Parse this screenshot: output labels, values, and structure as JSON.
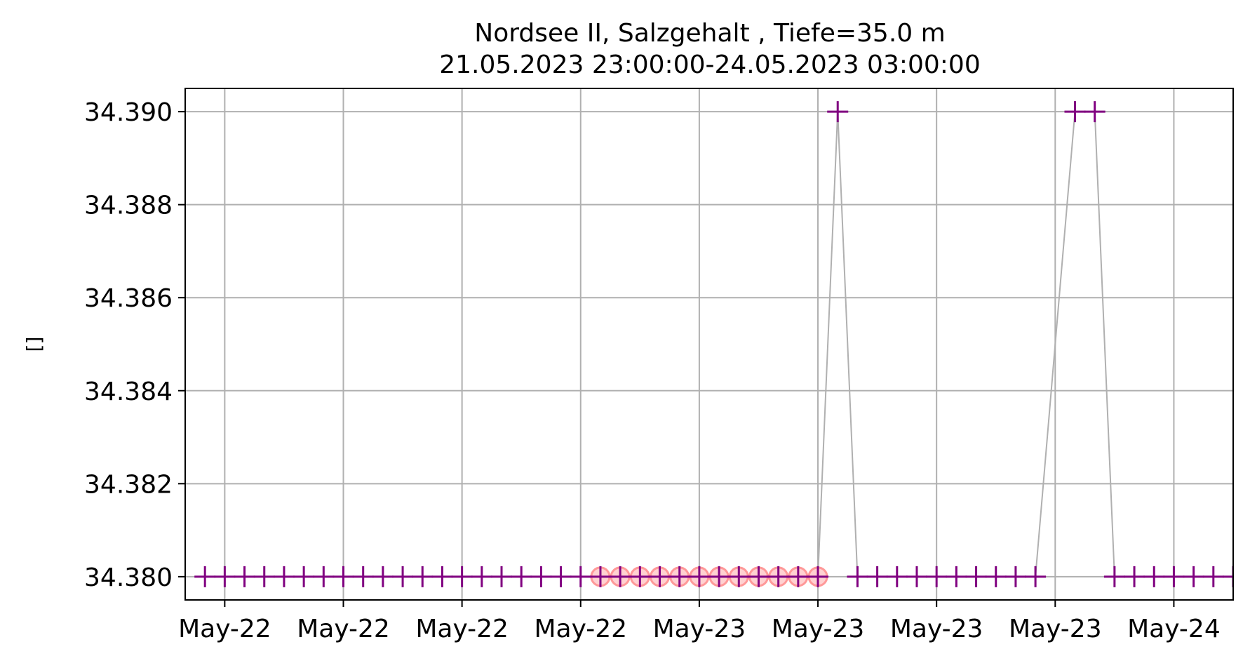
{
  "chart_data": {
    "type": "scatter",
    "title": "Nordsee II, Salzgehalt , Tiefe=35.0 m",
    "subtitle": "21.05.2023 23:00:00-24.05.2023 03:00:00",
    "xlabel": "",
    "ylabel": "[]",
    "x_start": "2023-05-21T23:00",
    "x_end": "2023-05-24T03:00",
    "xlim": [
      "2023-05-21T22:00",
      "2023-05-24T03:00"
    ],
    "ylim": [
      34.3795,
      34.3905
    ],
    "x_ticks": [
      {
        "t": "2023-05-22T00:00",
        "label": "May-22"
      },
      {
        "t": "2023-05-22T06:00",
        "label": "May-22"
      },
      {
        "t": "2023-05-22T12:00",
        "label": "May-22"
      },
      {
        "t": "2023-05-22T18:00",
        "label": "May-22"
      },
      {
        "t": "2023-05-23T00:00",
        "label": "May-23"
      },
      {
        "t": "2023-05-23T06:00",
        "label": "May-23"
      },
      {
        "t": "2023-05-23T12:00",
        "label": "May-23"
      },
      {
        "t": "2023-05-23T18:00",
        "label": "May-23"
      },
      {
        "t": "2023-05-24T00:00",
        "label": "May-24"
      }
    ],
    "y_ticks": [
      {
        "v": 34.38,
        "label": "34.380"
      },
      {
        "v": 34.382,
        "label": "34.382"
      },
      {
        "v": 34.384,
        "label": "34.384"
      },
      {
        "v": 34.386,
        "label": "34.386"
      },
      {
        "v": 34.388,
        "label": "34.388"
      },
      {
        "v": 34.39,
        "label": "34.390"
      }
    ],
    "grid": true,
    "series": [
      {
        "marker": "+",
        "color": "#800080",
        "points": [
          [
            "2023-05-21T23:00",
            34.38
          ],
          [
            "2023-05-22T00:00",
            34.38
          ],
          [
            "2023-05-22T01:00",
            34.38
          ],
          [
            "2023-05-22T02:00",
            34.38
          ],
          [
            "2023-05-22T03:00",
            34.38
          ],
          [
            "2023-05-22T04:00",
            34.38
          ],
          [
            "2023-05-22T05:00",
            34.38
          ],
          [
            "2023-05-22T06:00",
            34.38
          ],
          [
            "2023-05-22T07:00",
            34.38
          ],
          [
            "2023-05-22T08:00",
            34.38
          ],
          [
            "2023-05-22T09:00",
            34.38
          ],
          [
            "2023-05-22T10:00",
            34.38
          ],
          [
            "2023-05-22T11:00",
            34.38
          ],
          [
            "2023-05-22T12:00",
            34.38
          ],
          [
            "2023-05-22T13:00",
            34.38
          ],
          [
            "2023-05-22T14:00",
            34.38
          ],
          [
            "2023-05-22T15:00",
            34.38
          ],
          [
            "2023-05-22T16:00",
            34.38
          ],
          [
            "2023-05-22T17:00",
            34.38
          ],
          [
            "2023-05-22T18:00",
            34.38
          ],
          [
            "2023-05-22T19:00",
            34.38
          ],
          [
            "2023-05-22T20:00",
            34.38
          ],
          [
            "2023-05-22T21:00",
            34.38
          ],
          [
            "2023-05-22T22:00",
            34.38
          ],
          [
            "2023-05-22T23:00",
            34.38
          ],
          [
            "2023-05-23T00:00",
            34.38
          ],
          [
            "2023-05-23T01:00",
            34.38
          ],
          [
            "2023-05-23T02:00",
            34.38
          ],
          [
            "2023-05-23T03:00",
            34.38
          ],
          [
            "2023-05-23T04:00",
            34.38
          ],
          [
            "2023-05-23T05:00",
            34.38
          ],
          [
            "2023-05-23T06:00",
            34.38
          ],
          [
            "2023-05-23T07:00",
            34.39
          ],
          [
            "2023-05-23T08:00",
            34.38
          ],
          [
            "2023-05-23T09:00",
            34.38
          ],
          [
            "2023-05-23T10:00",
            34.38
          ],
          [
            "2023-05-23T11:00",
            34.38
          ],
          [
            "2023-05-23T12:00",
            34.38
          ],
          [
            "2023-05-23T13:00",
            34.38
          ],
          [
            "2023-05-23T14:00",
            34.38
          ],
          [
            "2023-05-23T15:00",
            34.38
          ],
          [
            "2023-05-23T16:00",
            34.38
          ],
          [
            "2023-05-23T17:00",
            34.38
          ],
          [
            "2023-05-23T19:00",
            34.39
          ],
          [
            "2023-05-23T20:00",
            34.39
          ],
          [
            "2023-05-23T21:00",
            34.38
          ],
          [
            "2023-05-23T22:00",
            34.38
          ],
          [
            "2023-05-23T23:00",
            34.38
          ],
          [
            "2023-05-24T00:00",
            34.38
          ],
          [
            "2023-05-24T01:00",
            34.38
          ],
          [
            "2023-05-24T02:00",
            34.38
          ],
          [
            "2023-05-24T03:00",
            34.38
          ]
        ]
      },
      {
        "marker": "o",
        "color": "#ff9999",
        "points": [
          [
            "2023-05-22T19:00",
            34.38
          ],
          [
            "2023-05-22T20:00",
            34.38
          ],
          [
            "2023-05-22T21:00",
            34.38
          ],
          [
            "2023-05-22T22:00",
            34.38
          ],
          [
            "2023-05-22T23:00",
            34.38
          ],
          [
            "2023-05-23T00:00",
            34.38
          ],
          [
            "2023-05-23T01:00",
            34.38
          ],
          [
            "2023-05-23T02:00",
            34.38
          ],
          [
            "2023-05-23T03:00",
            34.38
          ],
          [
            "2023-05-23T04:00",
            34.38
          ],
          [
            "2023-05-23T05:00",
            34.38
          ],
          [
            "2023-05-23T06:00",
            34.38
          ]
        ]
      }
    ]
  }
}
